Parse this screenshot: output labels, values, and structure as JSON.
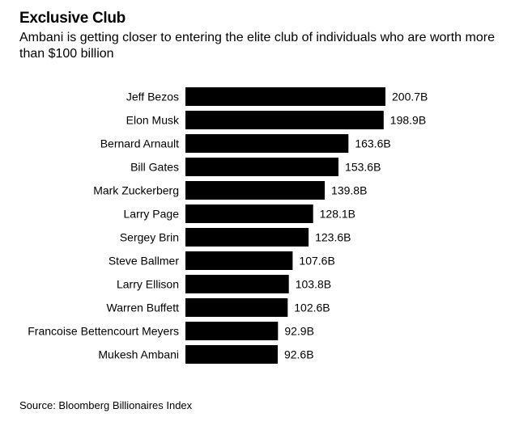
{
  "header": {
    "title": "Exclusive Club",
    "subtitle": "Ambani is getting closer to entering the elite club of individuals who are worth more than $100 billion"
  },
  "footer": {
    "source": "Source: Bloomberg Billionaires Index"
  },
  "colors": {
    "bar": "#000000",
    "background": "#ffffff"
  },
  "chart_data": {
    "type": "bar",
    "orientation": "horizontal",
    "categories": [
      "Jeff Bezos",
      "Elon Musk",
      "Bernard Arnault",
      "Bill Gates",
      "Mark Zuckerberg",
      "Larry Page",
      "Sergey Brin",
      "Steve Ballmer",
      "Larry Ellison",
      "Warren Buffett",
      "Francoise Bettencourt Meyers",
      "Mukesh Ambani"
    ],
    "values": [
      200.7,
      198.9,
      163.6,
      153.6,
      139.8,
      128.1,
      123.6,
      107.6,
      103.8,
      102.6,
      92.9,
      92.6
    ],
    "value_labels": [
      "200.7B",
      "198.9B",
      "163.6B",
      "153.6B",
      "139.8B",
      "128.1B",
      "123.6B",
      "107.6B",
      "103.8B",
      "102.6B",
      "92.9B",
      "92.6B"
    ],
    "unit": "B",
    "xlim": [
      0,
      200.7
    ],
    "grid": false,
    "legend": "none"
  }
}
